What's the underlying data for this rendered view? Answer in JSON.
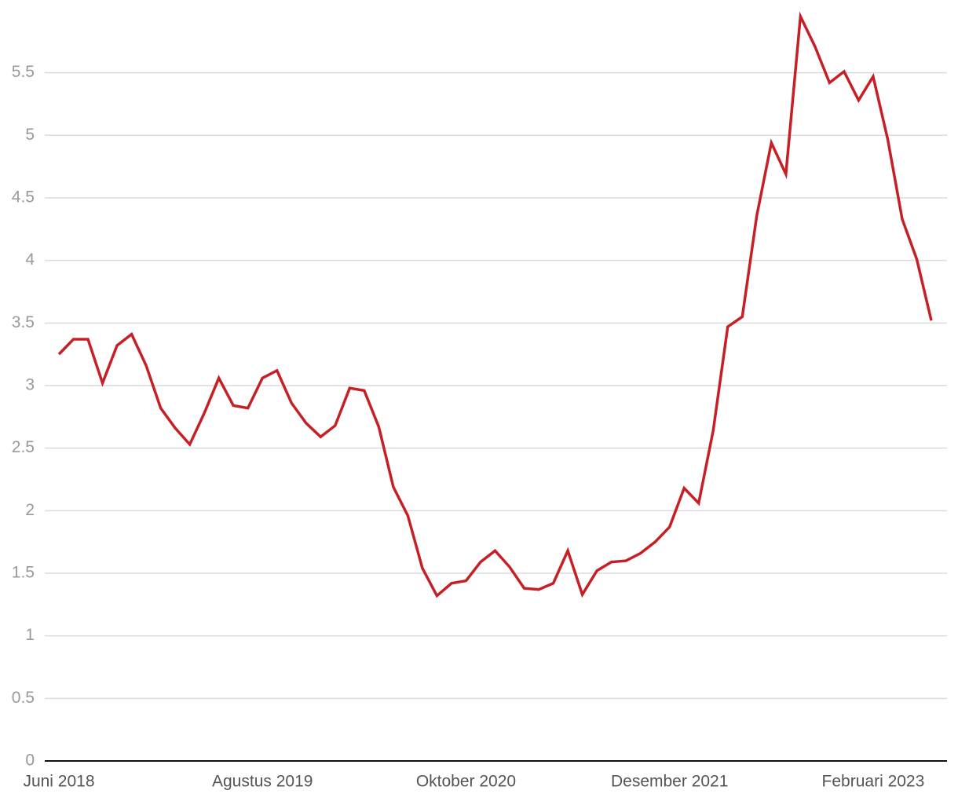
{
  "chart_data": {
    "type": "line",
    "categories": [
      "Juni 2018",
      null,
      null,
      null,
      null,
      null,
      null,
      null,
      null,
      null,
      null,
      null,
      null,
      null,
      "Agustus 2019",
      null,
      null,
      null,
      null,
      null,
      null,
      null,
      null,
      null,
      null,
      null,
      null,
      null,
      "Oktober 2020",
      null,
      null,
      null,
      null,
      null,
      null,
      null,
      null,
      null,
      null,
      null,
      null,
      null,
      "Desember 2021",
      null,
      null,
      null,
      null,
      null,
      null,
      null,
      null,
      null,
      null,
      null,
      null,
      null,
      "Februari 2023",
      null,
      null,
      null,
      null
    ],
    "values": [
      3.25,
      3.37,
      3.37,
      3.02,
      3.32,
      3.41,
      3.16,
      2.82,
      2.66,
      2.53,
      2.78,
      3.06,
      2.84,
      2.82,
      3.06,
      3.12,
      2.86,
      2.7,
      2.59,
      2.68,
      2.98,
      2.96,
      2.67,
      2.19,
      1.96,
      1.54,
      1.32,
      1.42,
      1.44,
      1.59,
      1.68,
      1.55,
      1.38,
      1.37,
      1.42,
      1.68,
      1.33,
      1.52,
      1.59,
      1.6,
      1.66,
      1.75,
      1.87,
      2.18,
      2.06,
      2.64,
      3.47,
      3.55,
      4.36,
      4.94,
      4.69,
      5.95,
      5.71,
      5.42,
      5.51,
      5.28,
      5.47,
      4.97,
      4.33,
      4.01,
      3.52
    ],
    "color": "#c62026",
    "ylim": [
      0,
      6.05
    ],
    "yticks": [
      0,
      0.5,
      1,
      1.5,
      2,
      2.5,
      3,
      3.5,
      4,
      4.5,
      5,
      5.5
    ],
    "grid": true
  }
}
